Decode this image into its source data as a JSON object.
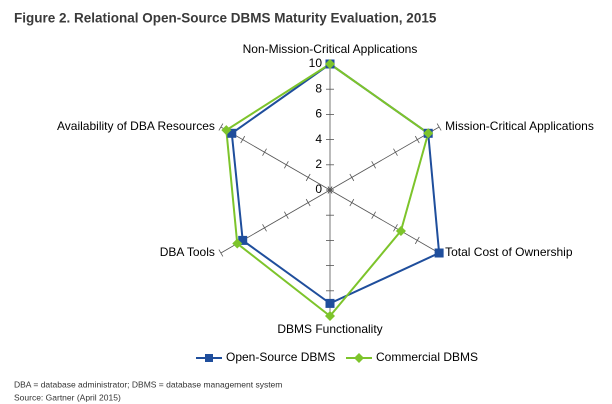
{
  "chart_data": {
    "type": "radar",
    "title": "Figure 2. Relational Open-Source DBMS Maturity Evaluation, 2015",
    "categories": [
      "Non-Mission-Critical Applications",
      "Mission-Critical Applications",
      "Total Cost of Ownership",
      "DBMS Functionality",
      "DBA Tools",
      "Availability of DBA Resources"
    ],
    "series": [
      {
        "name": "Open-Source DBMS",
        "color": "#1f4e9c",
        "values": [
          10,
          9,
          10,
          9,
          8,
          9
        ]
      },
      {
        "name": "Commercial DBMS",
        "color": "#7dc42b",
        "values": [
          10,
          9,
          6.5,
          10,
          8.5,
          9.5
        ]
      }
    ],
    "ylim": [
      0,
      10
    ],
    "yticks": [
      0,
      2,
      4,
      6,
      8,
      10
    ],
    "notes": [
      "DBA = database administrator; DBMS = database management system",
      "Source: Gartner (April 2015)"
    ]
  }
}
